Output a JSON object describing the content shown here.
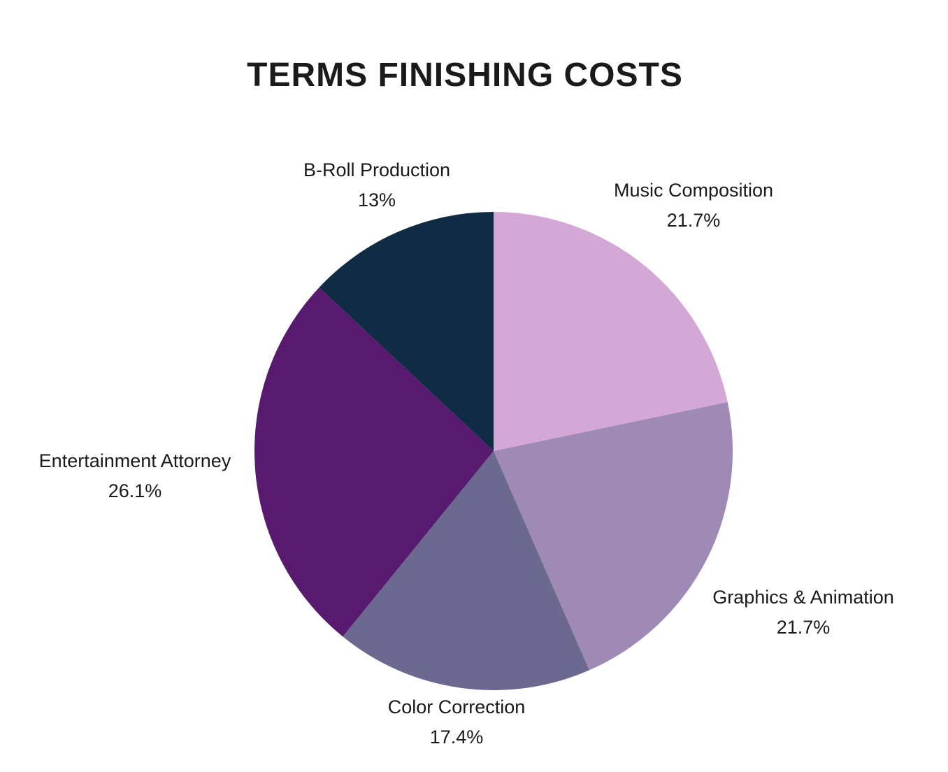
{
  "chart_data": {
    "type": "pie",
    "title": "TERMS FINISHING COSTS",
    "slices": [
      {
        "label": "Music Composition",
        "value": 21.7,
        "value_label": "21.7%",
        "color": "#D4A8D6"
      },
      {
        "label": "Graphics & Animation",
        "value": 21.7,
        "value_label": "21.7%",
        "color": "#9F89B5"
      },
      {
        "label": "Color Correction",
        "value": 17.4,
        "value_label": "17.4%",
        "color": "#6B6990"
      },
      {
        "label": "Entertainment Attorney",
        "value": 26.1,
        "value_label": "26.1%",
        "color": "#581A6E"
      },
      {
        "label": "B-Roll Production",
        "value": 13,
        "value_label": "13%",
        "color": "#102C45"
      }
    ],
    "start_angle": "top",
    "direction": "clockwise",
    "legend": "none"
  }
}
